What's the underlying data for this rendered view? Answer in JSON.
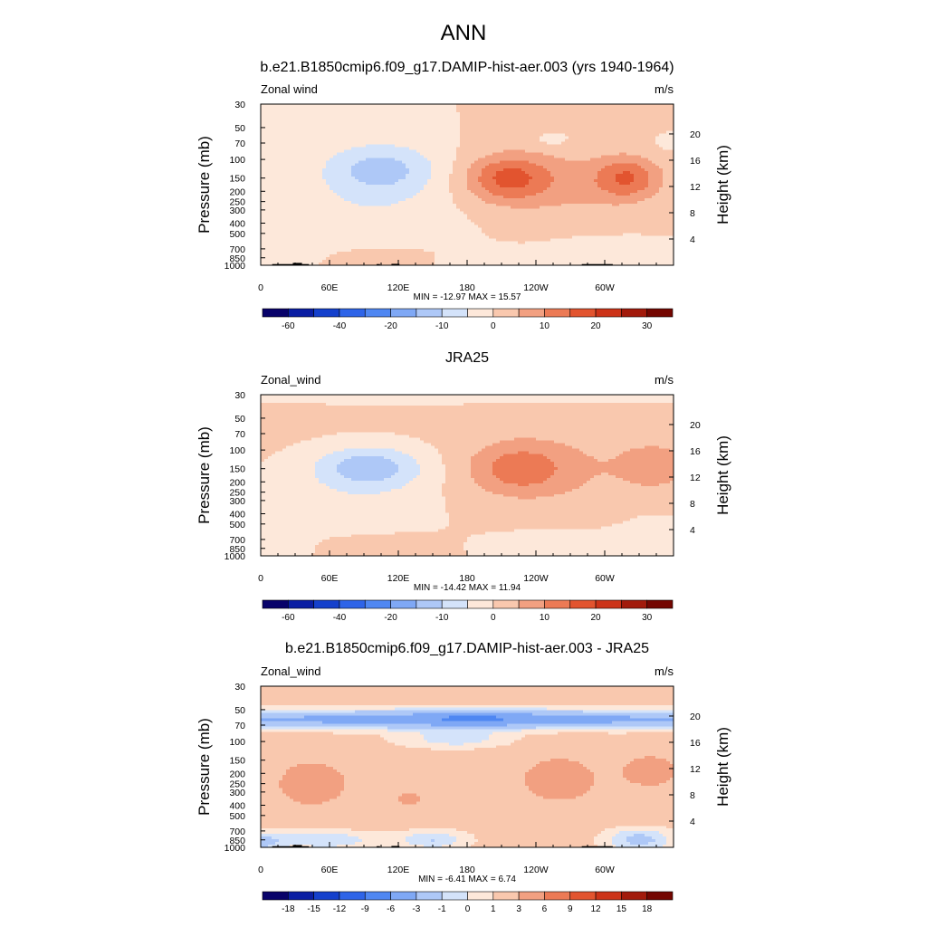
{
  "figure": {
    "title": "ANN"
  },
  "colors": {
    "abs_levels": [
      "#08026a",
      "#0a1ea3",
      "#1440cc",
      "#2e64e8",
      "#4f87f2",
      "#7fa8f5",
      "#aec8f7",
      "#d4e3fa",
      "#fde8da",
      "#f9c8ae",
      "#f2a081",
      "#ec7a55",
      "#e2542f",
      "#cc3318",
      "#a21a0b",
      "#740601"
    ],
    "diff_levels": [
      "#08026a",
      "#0a1ea3",
      "#1440cc",
      "#2e64e8",
      "#4f87f2",
      "#7fa8f5",
      "#aec8f7",
      "#d4e3fa",
      "#fde8da",
      "#f9c8ae",
      "#f2a081",
      "#ec7a55",
      "#e2542f",
      "#cc3318",
      "#a21a0b",
      "#740601"
    ],
    "terrain": "#000000"
  },
  "chart_data": [
    {
      "type": "heatmap",
      "title": "b.e21.B1850cmip6.f09_g17.DAMIP-hist-aer.003 (yrs 1940-1964)",
      "left_string": "Zonal wind",
      "right_string": "m/s",
      "ylabel": "Pressure (mb)",
      "ylabel_right": "Height (km)",
      "x_ticks": [
        "0",
        "60E",
        "120E",
        "180",
        "120W",
        "60W"
      ],
      "x_tick_lon": [
        0,
        60,
        120,
        180,
        240,
        300
      ],
      "xlim": [
        0,
        360
      ],
      "y_ticks": [
        "30",
        "50",
        "70",
        "100",
        "150",
        "200",
        "250",
        "300",
        "400",
        "500",
        "700",
        "850",
        "1000"
      ],
      "y_tick_p": [
        30,
        50,
        70,
        100,
        150,
        200,
        250,
        300,
        400,
        500,
        700,
        850,
        1000
      ],
      "ylim": [
        1000,
        30
      ],
      "y_scale": "log",
      "height_ticks": [
        "20",
        "16",
        "12",
        "8",
        "4"
      ],
      "height_km": [
        20,
        16,
        12,
        8,
        4
      ],
      "stats": "MIN = -12.97  MAX =  15.57",
      "min": -12.97,
      "max": 15.57,
      "colorbar": {
        "labels": [
          "-60",
          "-40",
          "-20",
          "-10",
          "0",
          "10",
          "20",
          "30"
        ],
        "label_boxes": [
          1,
          3,
          5,
          7,
          9,
          11,
          13,
          15
        ]
      },
      "field": {
        "background": 0,
        "blobs": [
          {
            "lon": 105,
            "p": 122,
            "slon": 48,
            "sp": 0.55,
            "v": -11
          },
          {
            "lon": 95,
            "p": 300,
            "slon": 70,
            "sp": 1.0,
            "v": -4
          },
          {
            "lon": 215,
            "p": 150,
            "slon": 36,
            "sp": 0.5,
            "v": 14
          },
          {
            "lon": 320,
            "p": 150,
            "slon": 28,
            "sp": 0.45,
            "v": 13
          },
          {
            "lon": 265,
            "p": 170,
            "slon": 70,
            "sp": 0.8,
            "v": 6
          },
          {
            "lon": 100,
            "p": 900,
            "slon": 55,
            "sp": 0.3,
            "v": 4
          },
          {
            "lon": 205,
            "p": 950,
            "slon": 45,
            "sp": 0.25,
            "v": -4
          },
          {
            "lon": 300,
            "p": 700,
            "slon": 45,
            "sp": 0.25,
            "v": -3
          },
          {
            "lon": 20,
            "p": 800,
            "slon": 40,
            "sp": 0.4,
            "v": -2.5
          },
          {
            "lon": 255,
            "p": 65,
            "slon": 12,
            "sp": 0.12,
            "v": -4
          },
          {
            "lon": 0,
            "p": 65,
            "slon": 14,
            "sp": 0.15,
            "v": -3
          },
          {
            "lon": 360,
            "p": 70,
            "slon": 14,
            "sp": 0.15,
            "v": -3
          }
        ]
      },
      "terrain": [
        [
          10,
          30,
          975
        ],
        [
          28,
          36,
          950
        ],
        [
          36,
          42,
          975
        ],
        [
          101,
          104,
          975
        ],
        [
          114,
          121,
          970
        ],
        [
          280,
          307,
          975
        ]
      ]
    },
    {
      "type": "heatmap",
      "title": "JRA25",
      "left_string": "Zonal_wind",
      "right_string": "m/s",
      "ylabel": "Pressure (mb)",
      "ylabel_right": "Height (km)",
      "x_ticks": [
        "0",
        "60E",
        "120E",
        "180",
        "120W",
        "60W"
      ],
      "x_tick_lon": [
        0,
        60,
        120,
        180,
        240,
        300
      ],
      "xlim": [
        0,
        360
      ],
      "y_ticks": [
        "30",
        "50",
        "70",
        "100",
        "150",
        "200",
        "250",
        "300",
        "400",
        "500",
        "700",
        "850",
        "1000"
      ],
      "y_tick_p": [
        30,
        50,
        70,
        100,
        150,
        200,
        250,
        300,
        400,
        500,
        700,
        850,
        1000
      ],
      "ylim": [
        1000,
        30
      ],
      "y_scale": "log",
      "height_ticks": [
        "20",
        "16",
        "12",
        "8",
        "4"
      ],
      "height_km": [
        20,
        16,
        12,
        8,
        4
      ],
      "stats": "MIN = -14.42  MAX =  11.94",
      "min": -14.42,
      "max": 11.94,
      "colorbar": {
        "labels": [
          "-60",
          "-40",
          "-20",
          "-10",
          "0",
          "10",
          "20",
          "30"
        ],
        "label_boxes": [
          1,
          3,
          5,
          7,
          9,
          11,
          13,
          15
        ]
      },
      "field": {
        "background": 1.2,
        "blobs": [
          {
            "lon": 95,
            "p": 145,
            "slon": 45,
            "sp": 0.45,
            "v": -13
          },
          {
            "lon": 80,
            "p": 320,
            "slon": 80,
            "sp": 1.1,
            "v": -4
          },
          {
            "lon": 20,
            "p": 500,
            "slon": 22,
            "sp": 0.9,
            "v": -4
          },
          {
            "lon": 225,
            "p": 150,
            "slon": 42,
            "sp": 0.55,
            "v": 11
          },
          {
            "lon": 345,
            "p": 140,
            "slon": 30,
            "sp": 0.45,
            "v": 6
          },
          {
            "lon": 280,
            "p": 150,
            "slon": 80,
            "sp": 0.9,
            "v": 3
          },
          {
            "lon": 180,
            "p": 30,
            "slon": 400,
            "sp": 0.18,
            "v": -4.5
          },
          {
            "lon": 270,
            "p": 850,
            "slon": 80,
            "sp": 0.45,
            "v": -4
          },
          {
            "lon": 345,
            "p": 600,
            "slon": 30,
            "sp": 0.4,
            "v": -4
          },
          {
            "lon": 100,
            "p": 800,
            "slon": 50,
            "sp": 0.3,
            "v": 3
          }
        ]
      },
      "terrain": []
    },
    {
      "type": "heatmap",
      "title": "b.e21.B1850cmip6.f09_g17.DAMIP-hist-aer.003 - JRA25",
      "left_string": "Zonal_wind",
      "right_string": "m/s",
      "ylabel": "Pressure (mb)",
      "ylabel_right": "Height (km)",
      "x_ticks": [
        "0",
        "60E",
        "120E",
        "180",
        "120W",
        "60W"
      ],
      "x_tick_lon": [
        0,
        60,
        120,
        180,
        240,
        300
      ],
      "xlim": [
        0,
        360
      ],
      "y_ticks": [
        "30",
        "50",
        "70",
        "100",
        "150",
        "200",
        "250",
        "300",
        "400",
        "500",
        "700",
        "850",
        "1000"
      ],
      "y_tick_p": [
        30,
        50,
        70,
        100,
        150,
        200,
        250,
        300,
        400,
        500,
        700,
        850,
        1000
      ],
      "ylim": [
        1000,
        30
      ],
      "y_scale": "log",
      "height_ticks": [
        "20",
        "16",
        "12",
        "8",
        "4"
      ],
      "height_km": [
        20,
        16,
        12,
        8,
        4
      ],
      "stats": "MIN =  -6.41  MAX =   6.74",
      "min": -6.41,
      "max": 6.74,
      "colorbar": {
        "labels": [
          "-18",
          "-15",
          "-12",
          "-9",
          "-6",
          "-3",
          "-1",
          "0",
          "1",
          "3",
          "6",
          "9",
          "12",
          "15",
          "18"
        ],
        "label_boxes": [
          1,
          2,
          3,
          4,
          5,
          6,
          7,
          8,
          9,
          10,
          11,
          12,
          13,
          14,
          15
        ]
      },
      "field": {
        "background": 1.5,
        "blobs": [
          {
            "lon": 180,
            "p": 62,
            "slon": 400,
            "sp": 0.2,
            "v": -5.5
          },
          {
            "lon": 185,
            "p": 60,
            "slon": 45,
            "sp": 0.15,
            "v": -3
          },
          {
            "lon": 170,
            "p": 95,
            "slon": 50,
            "sp": 0.2,
            "v": -2
          },
          {
            "lon": 45,
            "p": 250,
            "slon": 38,
            "sp": 0.6,
            "v": 2.6
          },
          {
            "lon": 260,
            "p": 230,
            "slon": 40,
            "sp": 0.6,
            "v": 2.6
          },
          {
            "lon": 340,
            "p": 190,
            "slon": 28,
            "sp": 0.4,
            "v": 2.6
          },
          {
            "lon": 130,
            "p": 350,
            "slon": 20,
            "sp": 0.3,
            "v": 1.8
          },
          {
            "lon": 55,
            "p": 850,
            "slon": 45,
            "sp": 0.2,
            "v": -2.5
          },
          {
            "lon": 150,
            "p": 850,
            "slon": 30,
            "sp": 0.2,
            "v": -2.5
          },
          {
            "lon": 330,
            "p": 850,
            "slon": 30,
            "sp": 0.25,
            "v": -3
          },
          {
            "lon": 0,
            "p": 900,
            "slon": 20,
            "sp": 0.25,
            "v": -2.5
          }
        ]
      },
      "terrain": [
        [
          10,
          30,
          975
        ],
        [
          28,
          36,
          950
        ],
        [
          36,
          42,
          975
        ],
        [
          101,
          104,
          975
        ],
        [
          114,
          121,
          970
        ],
        [
          280,
          307,
          975
        ]
      ]
    }
  ]
}
